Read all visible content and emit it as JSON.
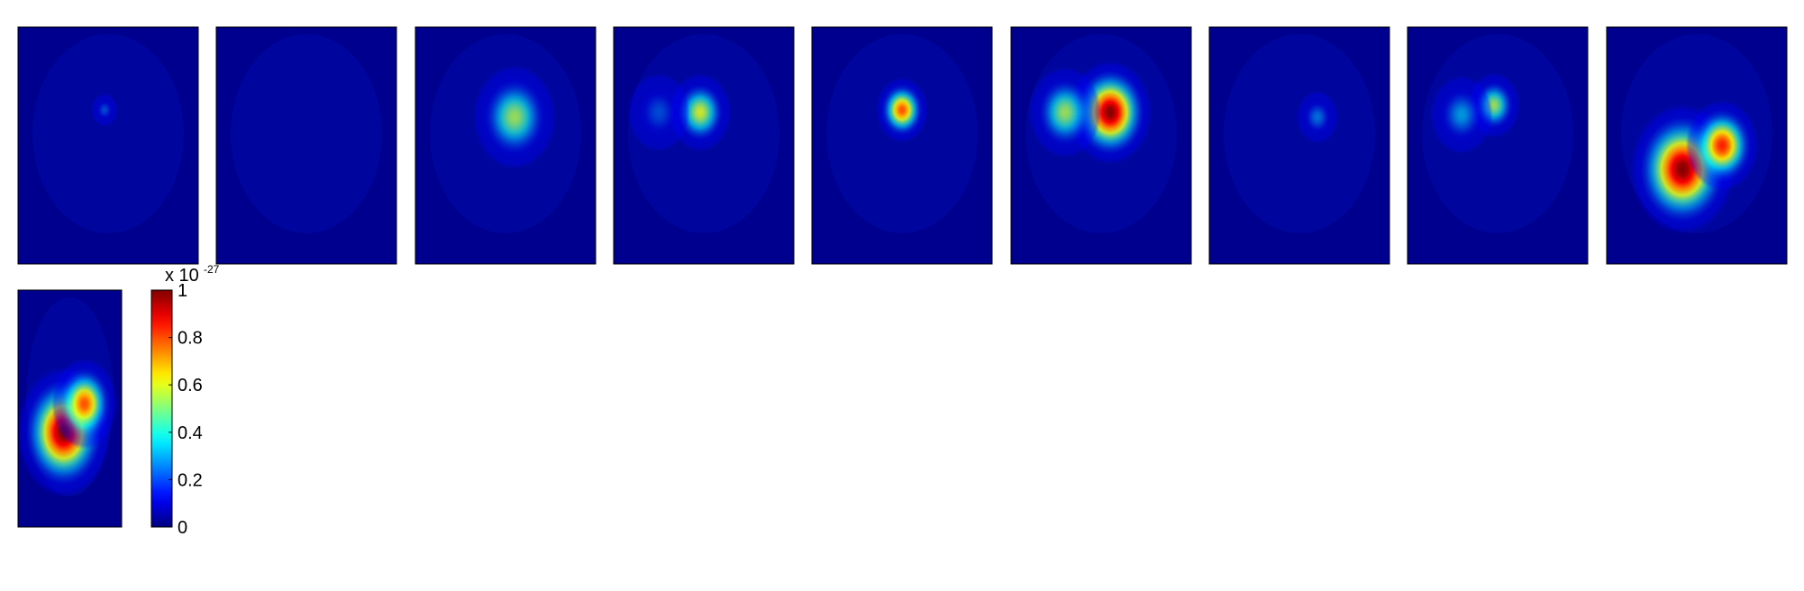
{
  "chart_data": {
    "type": "heatmap",
    "panel_count": 10,
    "panels": [
      {
        "hotspots": [
          {
            "x": 0.48,
            "y": 0.35,
            "peak": 0.25,
            "spread": 0.025
          }
        ]
      },
      {
        "hotspots": []
      },
      {
        "hotspots": [
          {
            "x": 0.55,
            "y": 0.38,
            "peak": 0.55,
            "spread": 0.08
          }
        ]
      },
      {
        "hotspots": [
          {
            "x": 0.48,
            "y": 0.36,
            "peak": 0.6,
            "spread": 0.06
          },
          {
            "x": 0.25,
            "y": 0.36,
            "peak": 0.25,
            "spread": 0.06
          }
        ]
      },
      {
        "hotspots": [
          {
            "x": 0.5,
            "y": 0.35,
            "peak": 0.8,
            "spread": 0.05
          }
        ]
      },
      {
        "hotspots": [
          {
            "x": 0.55,
            "y": 0.36,
            "peak": 1.0,
            "spread": 0.08
          },
          {
            "x": 0.3,
            "y": 0.36,
            "peak": 0.55,
            "spread": 0.07
          }
        ]
      },
      {
        "hotspots": [
          {
            "x": 0.6,
            "y": 0.38,
            "peak": 0.3,
            "spread": 0.04
          }
        ]
      },
      {
        "hotspots": [
          {
            "x": 0.48,
            "y": 0.33,
            "peak": 0.55,
            "spread": 0.05
          },
          {
            "x": 0.3,
            "y": 0.37,
            "peak": 0.35,
            "spread": 0.06
          }
        ]
      },
      {
        "hotspots": [
          {
            "x": 0.42,
            "y": 0.6,
            "peak": 1.0,
            "spread": 0.1
          },
          {
            "x": 0.64,
            "y": 0.5,
            "peak": 0.85,
            "spread": 0.07
          }
        ]
      },
      {
        "hotspots": [
          {
            "x": 0.44,
            "y": 0.6,
            "peak": 1.0,
            "spread": 0.1
          },
          {
            "x": 0.64,
            "y": 0.48,
            "peak": 0.8,
            "spread": 0.07
          }
        ]
      }
    ],
    "colorbar": {
      "colormap": "jet",
      "range": [
        0,
        1
      ],
      "ticks": [
        "0",
        "0.2",
        "0.4",
        "0.6",
        "0.8",
        "1"
      ],
      "exponent_base": "x 10",
      "exponent_power": "-27"
    }
  }
}
